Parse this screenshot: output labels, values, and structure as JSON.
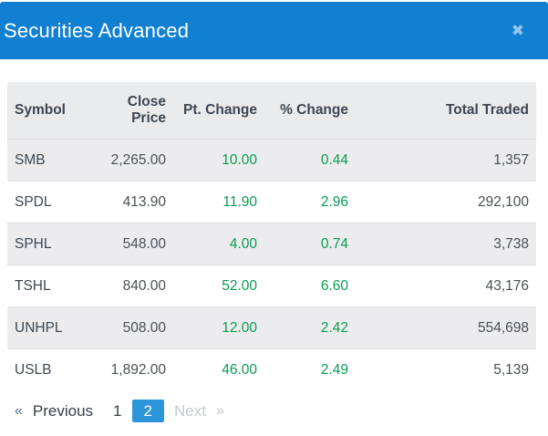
{
  "colors": {
    "header_blue": "#1180d2",
    "active_page_blue": "#2d95da",
    "positive_green": "#089c52",
    "table_header_bg": "#e9ebed",
    "stripe_bg": "#ececee"
  },
  "modal": {
    "title": "Securities Advanced",
    "close_icon": "✖"
  },
  "table": {
    "columns": [
      "Symbol",
      "Close Price",
      "Pt. Change",
      "% Change",
      "Total Traded"
    ],
    "rows": [
      {
        "symbol": "SMB",
        "close_price": "2,265.00",
        "pt_change": "10.00",
        "pct_change": "0.44",
        "total_traded": "1,357"
      },
      {
        "symbol": "SPDL",
        "close_price": "413.90",
        "pt_change": "11.90",
        "pct_change": "2.96",
        "total_traded": "292,100"
      },
      {
        "symbol": "SPHL",
        "close_price": "548.00",
        "pt_change": "4.00",
        "pct_change": "0.74",
        "total_traded": "3,738"
      },
      {
        "symbol": "TSHL",
        "close_price": "840.00",
        "pt_change": "52.00",
        "pct_change": "6.60",
        "total_traded": "43,176"
      },
      {
        "symbol": "UNHPL",
        "close_price": "508.00",
        "pt_change": "12.00",
        "pct_change": "2.42",
        "total_traded": "554,698"
      },
      {
        "symbol": "USLB",
        "close_price": "1,892.00",
        "pt_change": "46.00",
        "pct_change": "2.49",
        "total_traded": "5,139"
      }
    ]
  },
  "pagination": {
    "prev_symbol": "«",
    "prev_label": "Previous",
    "pages": [
      "1",
      "2"
    ],
    "active_page": "2",
    "next_label": "Next",
    "next_symbol": "»"
  }
}
